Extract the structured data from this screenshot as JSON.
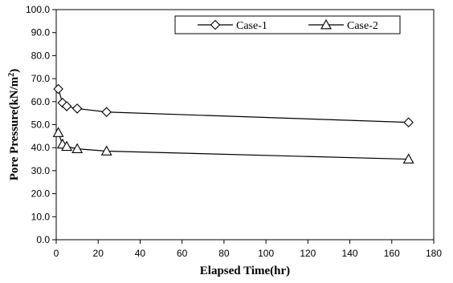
{
  "chart_data": {
    "type": "line",
    "xlabel": "Elapsed Time(hr)",
    "ylabel_main": "Pore Pressure(kN/m",
    "ylabel_sup": "2",
    "ylabel_close": ")",
    "xlim": [
      0,
      180
    ],
    "ylim": [
      0,
      100
    ],
    "x_ticks": [
      "0",
      "20",
      "40",
      "60",
      "80",
      "100",
      "120",
      "140",
      "160",
      "180"
    ],
    "y_ticks": [
      "0.0",
      "10.0",
      "20.0",
      "30.0",
      "40.0",
      "50.0",
      "60.0",
      "70.0",
      "80.0",
      "90.0",
      "100.0"
    ],
    "grid": false,
    "legend_position": "top-right",
    "series": [
      {
        "name": "Case-1",
        "marker": "diamond",
        "color": "#000000",
        "x": [
          1,
          3,
          5,
          10,
          24,
          168
        ],
        "y": [
          65.5,
          59.5,
          58.0,
          57.0,
          55.5,
          51.0
        ]
      },
      {
        "name": "Case-2",
        "marker": "triangle",
        "color": "#000000",
        "x": [
          1,
          3,
          5,
          10,
          24,
          168
        ],
        "y": [
          46.5,
          41.5,
          40.5,
          39.5,
          38.5,
          35.0
        ]
      }
    ]
  }
}
